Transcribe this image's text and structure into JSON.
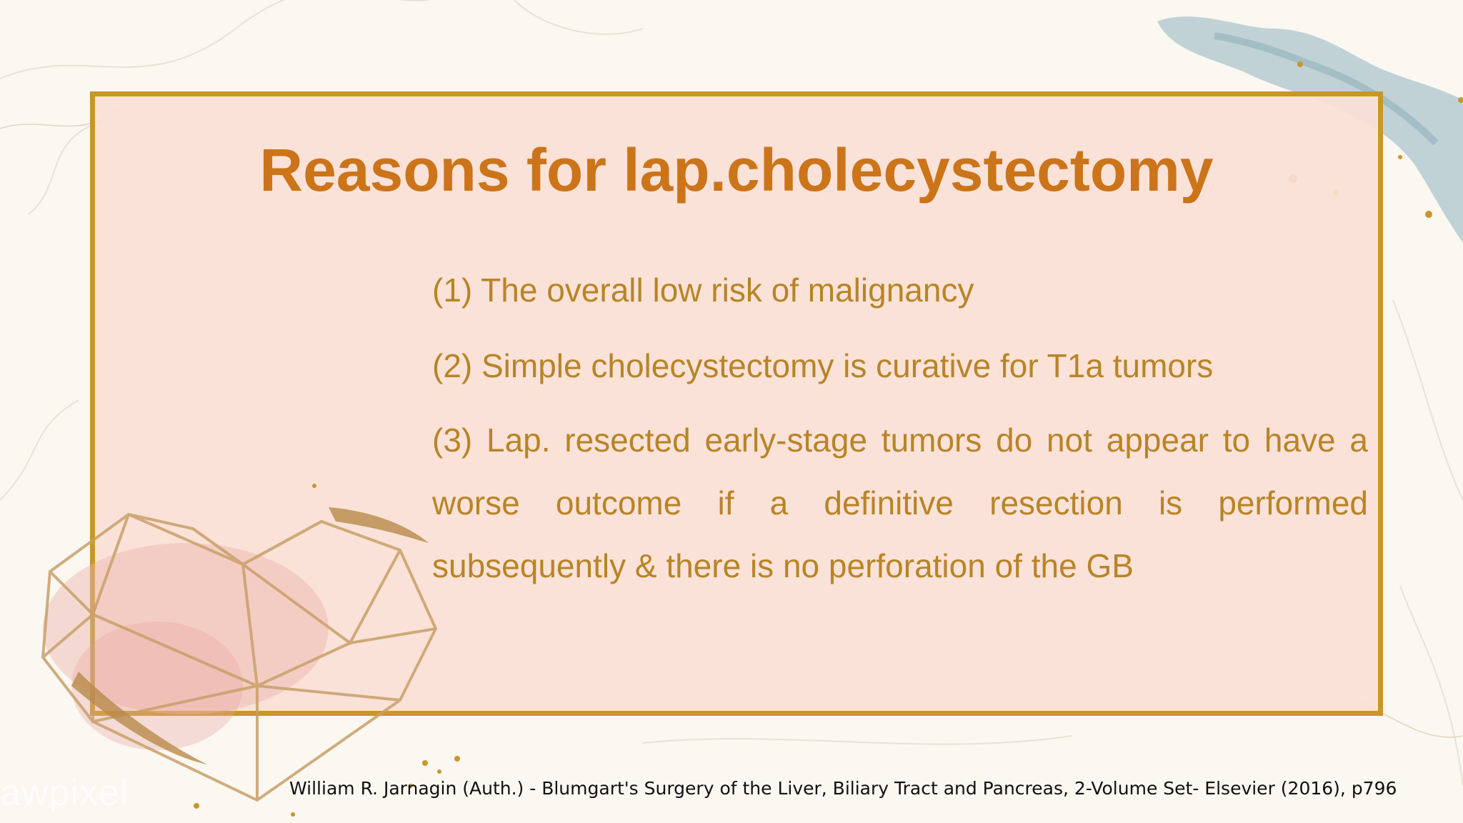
{
  "slide": {
    "title": "Reasons for lap.cholecystectomy",
    "points": [
      "(1) The overall low risk of malignancy",
      "(2) Simple cholecystectomy is curative for T1a tumors",
      "(3) Lap. resected early-stage tumors do not appear to have a worse outcome if a definitive resection is performed subsequently & there is no perforation of the GB"
    ],
    "citation": "William R. Jarnagin (Auth.) - Blumgart's Surgery of the Liver, Biliary Tract and Pancreas, 2-Volume Set- Elsevier  (2016), p796",
    "watermark": "awpixel"
  },
  "colors": {
    "title": "#cc7419",
    "body_text": "#b88426",
    "frame_border": "#c9962b",
    "frame_fill": "#fae0d6",
    "background": "#fbf7f1",
    "citation": "#111111"
  },
  "decorations": {
    "heart": "geometric-gold-heart-icon",
    "watercolor": "blue-watercolor-splash",
    "glitter": "gold-glitter"
  }
}
